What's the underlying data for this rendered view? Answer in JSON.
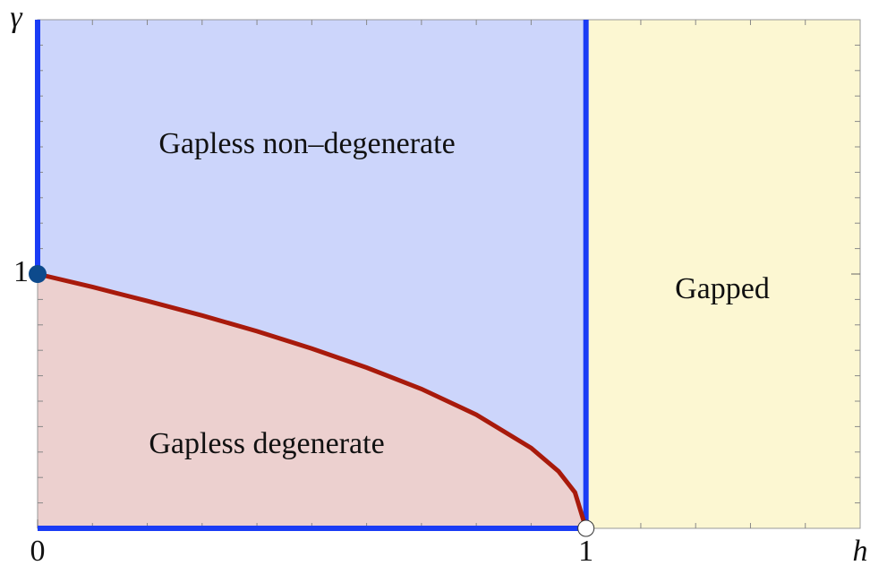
{
  "chart_data": {
    "type": "phase",
    "xlabel": "h",
    "ylabel": "γ",
    "xlim": [
      0,
      1.5
    ],
    "ylim": [
      0,
      2
    ],
    "xticks": [
      0,
      1
    ],
    "yticks": [
      1
    ],
    "xminorticks": [
      0.1,
      0.2,
      0.3,
      0.4,
      0.5,
      0.6,
      0.7,
      0.8,
      0.9,
      1.1,
      1.2,
      1.3,
      1.4
    ],
    "yminorticks": [
      0.1,
      0.2,
      0.3,
      0.4,
      0.5,
      0.6,
      0.7,
      0.8,
      0.9,
      1.1,
      1.2,
      1.3,
      1.4,
      1.5,
      1.6,
      1.7,
      1.8,
      1.9
    ],
    "regions": [
      {
        "name": "Gapless non–degenerate",
        "color": "#ccd5fb"
      },
      {
        "name": "Gapless degenerate",
        "color": "#ecd0cf"
      },
      {
        "name": "Gapped",
        "color": "#fcf7d2"
      }
    ],
    "boundary": {
      "color": "#a81a0c",
      "x": [
        0,
        0.1,
        0.2,
        0.3,
        0.4,
        0.5,
        0.6,
        0.7,
        0.8,
        0.9,
        0.95,
        0.98,
        1
      ],
      "values": [
        1,
        0.949,
        0.894,
        0.837,
        0.775,
        0.707,
        0.632,
        0.548,
        0.447,
        0.316,
        0.224,
        0.141,
        0
      ]
    },
    "critical_line_color": "#1a3cf5",
    "point_color": "#0d4a8c"
  }
}
